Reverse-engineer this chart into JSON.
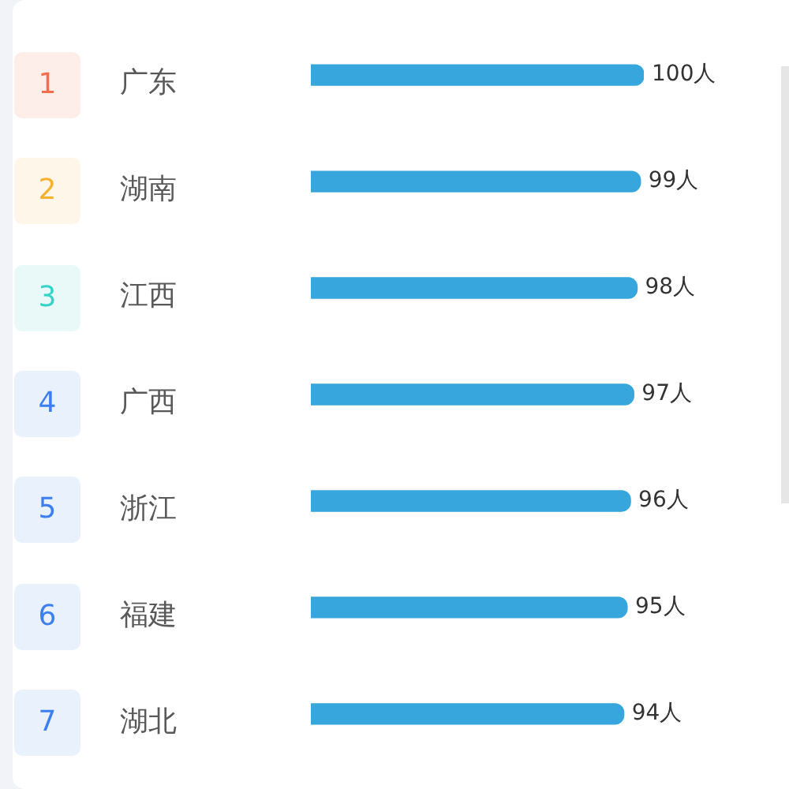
{
  "chart_data": {
    "type": "bar",
    "orientation": "horizontal",
    "categories": [
      "广东",
      "湖南",
      "江西",
      "广西",
      "浙江",
      "福建",
      "湖北"
    ],
    "values": [
      100,
      99,
      98,
      97,
      96,
      95,
      94
    ],
    "color": "#36a6dc",
    "value_labels": [
      "100人",
      "99人",
      "98人",
      "97人",
      "96人",
      "95人",
      "94人"
    ],
    "tick_labels": "y",
    "annotations": [
      "1",
      "2",
      "3",
      "4",
      "5",
      "6",
      "7"
    ]
  }
}
